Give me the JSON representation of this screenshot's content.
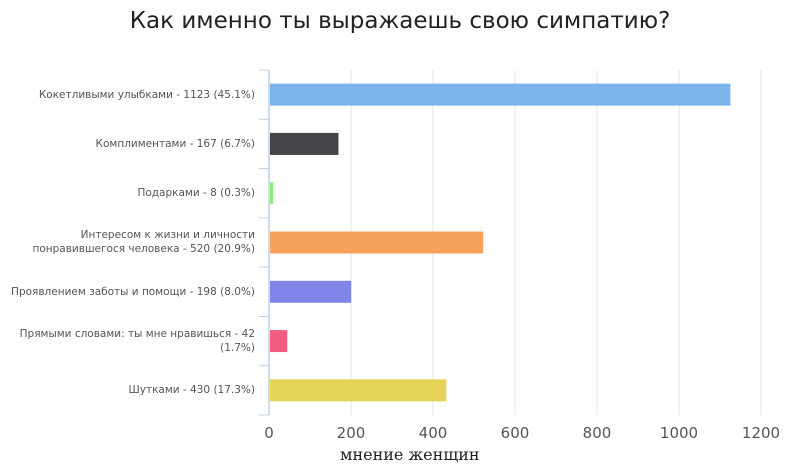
{
  "chart_data": {
    "type": "bar",
    "orientation": "horizontal",
    "title": "Как именно ты выражаешь свою симпатию?",
    "xlabel": "мнение женщин",
    "ylabel": "",
    "xlim": [
      0,
      1200
    ],
    "xticks": [
      "0",
      "200",
      "400",
      "600",
      "800",
      "1000",
      "1200"
    ],
    "grid": true,
    "categories": [
      "Кокетливыми улыбками - 1123 (45.1%)",
      "Комплиментами - 167 (6.7%)",
      "Подарками - 8 (0.3%)",
      "Интересом к жизни и личности понравившегося человека - 520 (20.9%)",
      "Проявлением заботы и помощи - 198 (8.0%)",
      "Прямыми словами: ты мне нравишься - 42 (1.7%)",
      "Шутками - 430 (17.3%)"
    ],
    "values": [
      1123,
      167,
      8,
      520,
      198,
      42,
      430
    ],
    "colors": [
      "#7cb5ec",
      "#434348",
      "#90ed7d",
      "#f7a35c",
      "#8085e9",
      "#f15c80",
      "#e4d354"
    ]
  }
}
